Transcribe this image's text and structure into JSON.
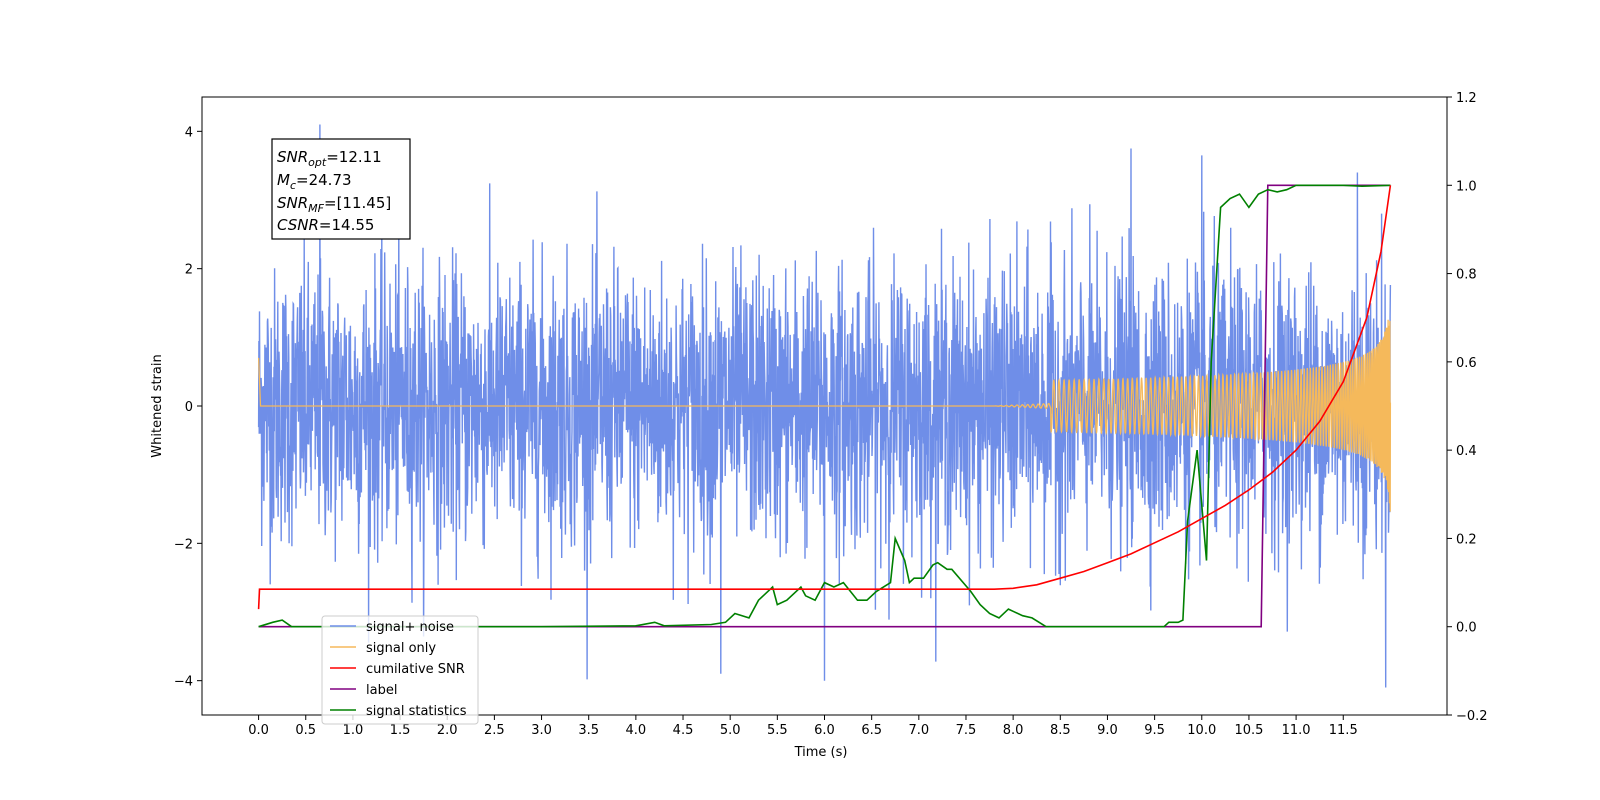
{
  "chart_data": {
    "type": "line",
    "xlabel": "Time (s)",
    "ylabel": "Whitened strain",
    "xlim": [
      -0.6,
      12.6
    ],
    "ylim_left": [
      -4.5,
      4.5
    ],
    "ylim_right": [
      -0.2,
      1.2
    ],
    "x_ticks": [
      "0.0",
      "0.5",
      "1.0",
      "1.5",
      "2.0",
      "2.5",
      "3.0",
      "3.5",
      "4.0",
      "4.5",
      "5.0",
      "5.5",
      "6.0",
      "6.5",
      "7.0",
      "7.5",
      "8.0",
      "8.5",
      "9.0",
      "9.5",
      "10.0",
      "10.5",
      "11.0",
      "11.5"
    ],
    "y_ticks_left": [
      "-4",
      "-2",
      "0",
      "2",
      "4"
    ],
    "y_ticks_right": [
      "-0.2",
      "0.0",
      "0.2",
      "0.4",
      "0.6",
      "0.8",
      "1.0",
      "1.2"
    ],
    "legend_position": "lower-left",
    "stats_box": {
      "snr_opt": {
        "name": "SNR",
        "sub": "opt",
        "value": "=12.11"
      },
      "mc": {
        "name": "M",
        "sub": "c",
        "value": "=24.73"
      },
      "snr_mf": {
        "name": "SNR",
        "sub": "MF",
        "value": "=[11.45]"
      },
      "csnr": {
        "name": "CSNR",
        "sub": "",
        "value": "=14.55"
      }
    },
    "series": [
      {
        "name": "signal+ noise",
        "color": "#6f8ee8",
        "axis": "left",
        "description_envelope": {
          "typical_abs": 2.2,
          "peak_abs": 4.1
        },
        "peaks": [
          [
            0.65,
            4.1
          ],
          [
            4.9,
            -3.9
          ],
          [
            6.0,
            -4.0
          ],
          [
            11.95,
            -4.1
          ],
          [
            9.25,
            3.75
          ],
          [
            10.0,
            3.65
          ],
          [
            11.65,
            3.4
          ]
        ]
      },
      {
        "name": "signal only",
        "color": "#f5b95b",
        "axis": "left",
        "chirp": {
          "start": 7.8,
          "end": 12.0,
          "end_amplitude": 1.6
        },
        "points": [
          [
            0.0,
            0.7
          ],
          [
            0.02,
            0.0
          ],
          [
            7.8,
            0.0
          ],
          [
            9.0,
            0.05
          ],
          [
            10.0,
            0.12
          ],
          [
            10.5,
            0.18
          ],
          [
            11.0,
            0.3
          ],
          [
            11.5,
            0.6
          ],
          [
            11.9,
            1.2
          ],
          [
            12.0,
            1.6
          ]
        ]
      },
      {
        "name": "cumilative SNR",
        "color": "#ff0000",
        "axis": "right",
        "points": [
          [
            0.0,
            0.04
          ],
          [
            0.01,
            0.085
          ],
          [
            7.8,
            0.085
          ],
          [
            8.0,
            0.087
          ],
          [
            8.25,
            0.095
          ],
          [
            8.5,
            0.11
          ],
          [
            8.75,
            0.125
          ],
          [
            9.0,
            0.145
          ],
          [
            9.25,
            0.165
          ],
          [
            9.5,
            0.19
          ],
          [
            9.75,
            0.215
          ],
          [
            10.0,
            0.245
          ],
          [
            10.25,
            0.275
          ],
          [
            10.5,
            0.31
          ],
          [
            10.75,
            0.35
          ],
          [
            11.0,
            0.4
          ],
          [
            11.25,
            0.465
          ],
          [
            11.5,
            0.555
          ],
          [
            11.75,
            0.7
          ],
          [
            11.9,
            0.85
          ],
          [
            12.0,
            1.0
          ]
        ]
      },
      {
        "name": "label",
        "color": "#800080",
        "axis": "right",
        "points": [
          [
            0.0,
            0.0
          ],
          [
            10.63,
            0.0
          ],
          [
            10.7,
            1.0
          ],
          [
            12.0,
            1.0
          ]
        ]
      },
      {
        "name": "signal statistics",
        "color": "#008000",
        "axis": "right",
        "points": [
          [
            0.0,
            0.0
          ],
          [
            0.15,
            0.01
          ],
          [
            0.25,
            0.015
          ],
          [
            0.35,
            0.0
          ],
          [
            3.0,
            0.0
          ],
          [
            4.0,
            0.002
          ],
          [
            4.2,
            0.01
          ],
          [
            4.3,
            0.002
          ],
          [
            4.8,
            0.005
          ],
          [
            4.95,
            0.01
          ],
          [
            5.05,
            0.03
          ],
          [
            5.2,
            0.02
          ],
          [
            5.3,
            0.06
          ],
          [
            5.45,
            0.09
          ],
          [
            5.5,
            0.05
          ],
          [
            5.6,
            0.06
          ],
          [
            5.75,
            0.09
          ],
          [
            5.8,
            0.07
          ],
          [
            5.9,
            0.06
          ],
          [
            6.0,
            0.1
          ],
          [
            6.1,
            0.09
          ],
          [
            6.2,
            0.1
          ],
          [
            6.35,
            0.06
          ],
          [
            6.45,
            0.06
          ],
          [
            6.55,
            0.08
          ],
          [
            6.7,
            0.1
          ],
          [
            6.75,
            0.2
          ],
          [
            6.85,
            0.15
          ],
          [
            6.9,
            0.1
          ],
          [
            6.95,
            0.11
          ],
          [
            7.05,
            0.11
          ],
          [
            7.15,
            0.14
          ],
          [
            7.2,
            0.145
          ],
          [
            7.3,
            0.13
          ],
          [
            7.35,
            0.13
          ],
          [
            7.55,
            0.08
          ],
          [
            7.65,
            0.05
          ],
          [
            7.75,
            0.03
          ],
          [
            7.85,
            0.02
          ],
          [
            7.95,
            0.04
          ],
          [
            8.0,
            0.035
          ],
          [
            8.1,
            0.025
          ],
          [
            8.2,
            0.02
          ],
          [
            8.35,
            0.0
          ],
          [
            9.6,
            0.0
          ],
          [
            9.65,
            0.01
          ],
          [
            9.75,
            0.01
          ],
          [
            9.8,
            0.015
          ],
          [
            9.85,
            0.24
          ],
          [
            9.95,
            0.4
          ],
          [
            10.05,
            0.15
          ],
          [
            10.1,
            0.6
          ],
          [
            10.2,
            0.95
          ],
          [
            10.3,
            0.97
          ],
          [
            10.4,
            0.98
          ],
          [
            10.5,
            0.95
          ],
          [
            10.6,
            0.98
          ],
          [
            10.7,
            0.99
          ],
          [
            10.8,
            0.985
          ],
          [
            10.9,
            0.99
          ],
          [
            11.0,
            1.0
          ],
          [
            11.5,
            1.0
          ],
          [
            11.7,
            0.998
          ],
          [
            12.0,
            1.0
          ]
        ]
      }
    ]
  }
}
